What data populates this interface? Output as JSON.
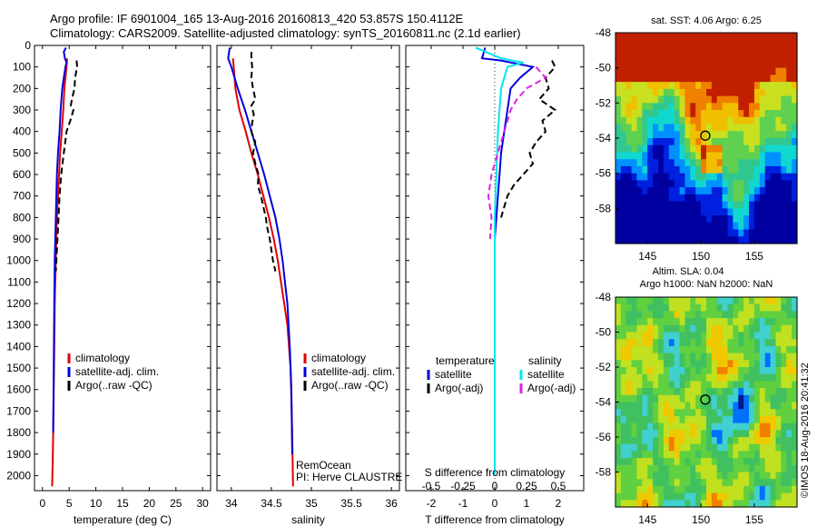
{
  "header": {
    "title_line1": "Argo profile: IF 6901004_165 13-Aug-2016 20160813_420 53.857S 150.4112E",
    "title_line2": "Climatology: CARS2009. Satellite-adjusted climatology: synTS_20160811.nc (2.1d earlier)"
  },
  "colors": {
    "climatology": "#e00000",
    "satellite": "#0000dd",
    "argo": "#000000",
    "sal_satellite": "#00e5ee",
    "sal_argo": "#e020e0"
  },
  "chart_data": [
    {
      "type": "line",
      "name": "temperature-profile",
      "xlabel": "temperature (deg C)",
      "xlim": [
        -1.5,
        31.5
      ],
      "xticks": [
        0,
        5,
        10,
        15,
        20,
        25,
        30
      ],
      "ylim": [
        2070,
        0
      ],
      "yticks": [
        0,
        100,
        200,
        300,
        400,
        500,
        600,
        700,
        800,
        900,
        1000,
        1100,
        1200,
        1300,
        1400,
        1500,
        1600,
        1700,
        1800,
        1900,
        2000
      ],
      "legend": {
        "placement": "lower-right",
        "entries": [
          "climatology",
          "satellite-adj. clim.",
          "Argo(..raw -QC)"
        ]
      },
      "series": [
        {
          "name": "climatology",
          "style": "solid",
          "x": [
            4.6,
            4.5,
            4.3,
            4.1,
            3.9,
            3.6,
            3.3,
            3.1,
            2.9,
            2.7,
            2.6,
            2.5,
            2.4,
            2.3,
            2.2,
            2.1,
            2.0,
            1.9,
            1.8
          ],
          "y": [
            60,
            100,
            150,
            200,
            300,
            400,
            500,
            600,
            700,
            800,
            900,
            1000,
            1100,
            1200,
            1400,
            1600,
            1800,
            1950,
            2050
          ]
        },
        {
          "name": "satellite-adj. clim.",
          "style": "solid",
          "x": [
            4.4,
            4.0,
            4.2,
            4.5,
            4.3,
            4.0,
            3.7,
            3.4,
            3.2,
            2.9,
            2.7,
            2.6,
            2.5,
            2.4,
            2.3,
            2.2,
            2.1,
            2.0
          ],
          "y": [
            10,
            30,
            60,
            80,
            100,
            150,
            200,
            300,
            400,
            500,
            600,
            700,
            800,
            900,
            1000,
            1200,
            1500,
            1800
          ]
        },
        {
          "name": "Argo(..raw -QC)",
          "style": "dashed",
          "x": [
            6.4,
            6.5,
            6.1,
            6.0,
            5.5,
            5.3,
            5.8,
            5.2,
            4.5,
            4.0,
            3.5,
            3.2,
            3.0,
            2.8,
            2.6,
            2.5
          ],
          "y": [
            70,
            100,
            150,
            200,
            250,
            280,
            300,
            350,
            400,
            500,
            600,
            700,
            800,
            900,
            1000,
            1050
          ]
        }
      ]
    },
    {
      "type": "line",
      "name": "salinity-profile",
      "xlabel": "salinity",
      "xlim": [
        33.82,
        36.1
      ],
      "xticks": [
        34,
        34.5,
        35,
        35.5,
        36
      ],
      "xticklabels": [
        "34",
        "34.5",
        "35",
        "35.5",
        "36"
      ],
      "ylim": [
        2070,
        0
      ],
      "legend": {
        "placement": "lower-right",
        "entries": [
          "climatology",
          "satellite-adj. clim.",
          "Argo(..raw -QC)"
        ]
      },
      "annotation": [
        "RemOcean",
        "PI: Herve CLAUSTRE"
      ],
      "series": [
        {
          "name": "climatology",
          "style": "solid",
          "x": [
            34.02,
            34.03,
            34.05,
            34.1,
            34.18,
            34.25,
            34.33,
            34.4,
            34.47,
            34.53,
            34.58,
            34.62,
            34.66,
            34.7,
            34.74,
            34.76,
            34.77
          ],
          "y": [
            60,
            100,
            200,
            300,
            400,
            500,
            600,
            700,
            800,
            900,
            1000,
            1100,
            1200,
            1300,
            1500,
            1800,
            2050
          ]
        },
        {
          "name": "satellite-adj. clim.",
          "style": "solid",
          "x": [
            33.98,
            33.96,
            34.0,
            34.08,
            34.17,
            34.25,
            34.33,
            34.41,
            34.48,
            34.55,
            34.6,
            34.64,
            34.67,
            34.7,
            34.73,
            34.75,
            34.76
          ],
          "y": [
            10,
            60,
            100,
            200,
            300,
            400,
            500,
            600,
            700,
            800,
            900,
            1000,
            1100,
            1200,
            1400,
            1600,
            1900
          ]
        },
        {
          "name": "Argo(..raw -QC)",
          "style": "dashed",
          "x": [
            34.25,
            34.25,
            34.26,
            34.25,
            34.27,
            34.3,
            34.25,
            34.28,
            34.26,
            34.25,
            34.3,
            34.27,
            34.3,
            34.34,
            34.33,
            34.37,
            34.4,
            34.43,
            34.45,
            34.48,
            34.5,
            34.52,
            34.55
          ],
          "y": [
            30,
            60,
            100,
            150,
            200,
            250,
            280,
            320,
            360,
            400,
            450,
            500,
            550,
            600,
            650,
            700,
            750,
            800,
            850,
            900,
            950,
            1000,
            1050
          ]
        }
      ]
    },
    {
      "type": "line",
      "name": "difference-profile",
      "xlabel": "T difference from climatology",
      "xlabel_top": "S difference from climatology",
      "xlim": [
        -2.8,
        2.8
      ],
      "xticks": [
        -2,
        -1,
        0,
        1,
        2
      ],
      "top_xticks": [
        -0.5,
        -0.25,
        0,
        0.25,
        0.5
      ],
      "top_xticklabels": [
        "-0.5",
        "-0.25",
        "0",
        "0.25",
        "0.5"
      ],
      "ylim": [
        2070,
        0
      ],
      "legend": {
        "placement": "lower-right",
        "temperature_header": "temperature",
        "salinity_header": "salinity",
        "entries": [
          "satellite",
          "Argo(-adj)",
          "satellite",
          "Argo(-adj)"
        ]
      },
      "series": [
        {
          "name": "temperature satellite",
          "style": "solid",
          "x": [
            -0.3,
            -0.4,
            0.2,
            1.2,
            0.8,
            0.5,
            0.4,
            0.3,
            0.2,
            0.15,
            0.1,
            0.05,
            0.0,
            0.0,
            0.0,
            0.0
          ],
          "y": [
            10,
            60,
            70,
            100,
            150,
            200,
            300,
            400,
            500,
            600,
            700,
            800,
            900,
            1000,
            1100,
            1200
          ]
        },
        {
          "name": "temperature Argo(-adj)",
          "style": "dashed",
          "x": [
            1.8,
            1.9,
            1.6,
            1.7,
            1.4,
            1.9,
            1.5,
            1.6,
            1.3,
            1.1,
            1.2,
            0.9,
            0.6,
            0.4,
            0.2
          ],
          "y": [
            70,
            100,
            150,
            200,
            250,
            300,
            350,
            400,
            450,
            500,
            550,
            600,
            650,
            700,
            800
          ]
        },
        {
          "name": "salinity satellite",
          "style": "solid",
          "x": [
            -0.6,
            0.2,
            0.9,
            0.4,
            0.3,
            0.2,
            0.1,
            0.05,
            0.0,
            0.0,
            0.0
          ],
          "y": [
            10,
            60,
            80,
            100,
            150,
            200,
            400,
            600,
            800,
            1000,
            2000
          ]
        },
        {
          "name": "salinity Argo(-adj)",
          "style": "dashed",
          "x": [
            1.3,
            1.6,
            1.0,
            0.7,
            0.5,
            0.3,
            0.1,
            -0.1,
            -0.2,
            -0.1,
            -0.15
          ],
          "y": [
            100,
            150,
            200,
            250,
            300,
            400,
            500,
            600,
            700,
            800,
            900
          ]
        }
      ]
    },
    {
      "type": "heatmap",
      "name": "sst-map",
      "title": "sat. SST: 4.06 Argo: 6.25",
      "xlim": [
        142,
        159
      ],
      "ylim": [
        -60,
        -48
      ],
      "xticks": [
        145,
        150,
        155
      ],
      "yticks": [
        -48,
        -50,
        -52,
        -54,
        -56,
        -58
      ],
      "marker": {
        "lon": 150.41,
        "lat": -53.86
      },
      "colormap": [
        "#0000a0",
        "#0020e0",
        "#0090ff",
        "#10d8d0",
        "#30c890",
        "#60d050",
        "#c8e020",
        "#f0c000",
        "#f08000",
        "#c02000"
      ]
    },
    {
      "type": "heatmap",
      "name": "sla-map",
      "title_line1": "Altim. SLA: 0.04",
      "title_line2": "Argo h1000: NaN h2000: NaN",
      "xlim": [
        142,
        159
      ],
      "ylim": [
        -60,
        -48
      ],
      "xticks": [
        145,
        150,
        155
      ],
      "yticks": [
        -48,
        -50,
        -52,
        -54,
        -56,
        -58
      ],
      "marker": {
        "lon": 150.41,
        "lat": -53.86
      },
      "colormap": [
        "#001890",
        "#0070ff",
        "#40d0d0",
        "#40c060",
        "#60d040",
        "#c0e020",
        "#f0c800",
        "#f08000",
        "#d02000"
      ]
    }
  ],
  "credit": "©IMOS 18-Aug-2016 20:41:32"
}
